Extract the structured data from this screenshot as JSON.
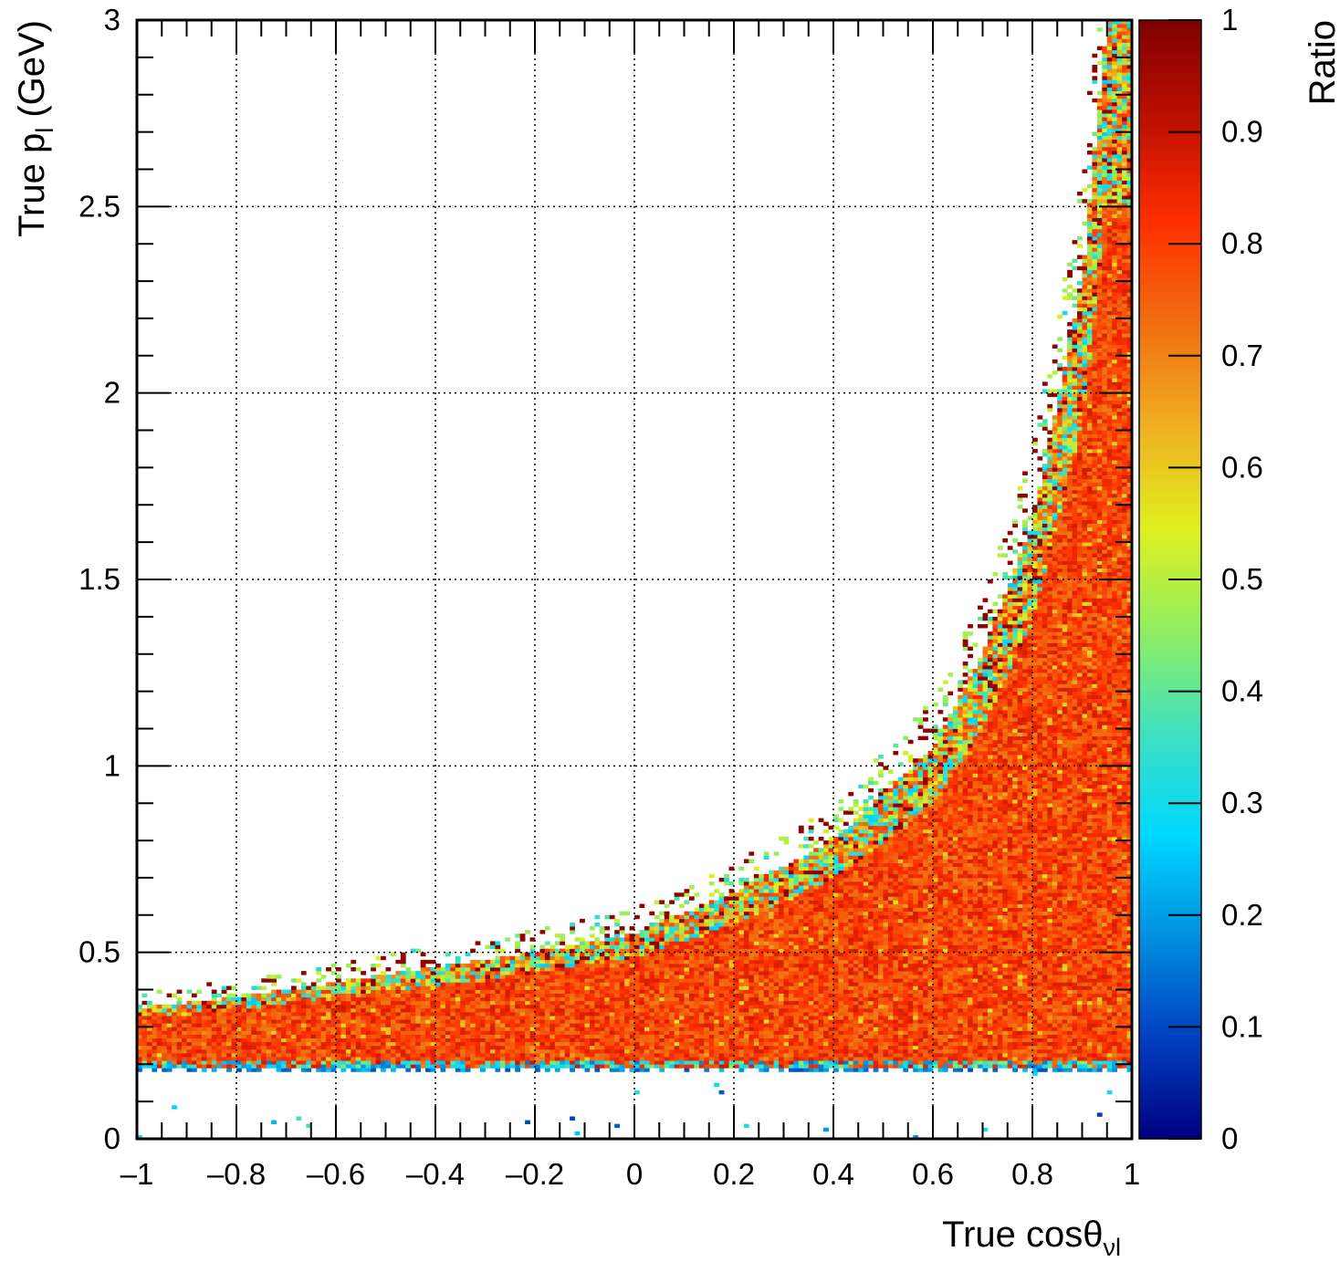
{
  "chart_data": {
    "type": "heatmap",
    "title": "",
    "xlabel": {
      "main": "True cos",
      "symbol": "θ",
      "subscript": "νl"
    },
    "ylabel": {
      "main": "True p",
      "subscript": "l",
      "unit": " (GeV)"
    },
    "zlabel": "Ratio",
    "xlim": [
      -1,
      1
    ],
    "ylim": [
      0,
      3
    ],
    "zlim": [
      0,
      1
    ],
    "x_ticks": [
      -1,
      -0.8,
      -0.6,
      -0.4,
      -0.2,
      0,
      0.2,
      0.4,
      0.6,
      0.8,
      1
    ],
    "x_tick_labels": [
      "–1",
      "–0.8",
      "–0.6",
      "–0.4",
      "–0.2",
      "0",
      "0.2",
      "0.4",
      "0.6",
      "0.8",
      "1"
    ],
    "y_ticks": [
      0,
      0.5,
      1,
      1.5,
      2,
      2.5,
      3
    ],
    "y_tick_labels": [
      "0",
      "0.5",
      "1",
      "1.5",
      "2",
      "2.5",
      "3"
    ],
    "z_ticks": [
      0,
      0.1,
      0.2,
      0.3,
      0.4,
      0.5,
      0.6,
      0.7,
      0.8,
      0.9,
      1
    ],
    "z_tick_labels": [
      "0",
      "0.1",
      "0.2",
      "0.3",
      "0.4",
      "0.5",
      "0.6",
      "0.7",
      "0.8",
      "0.9",
      "1"
    ],
    "grid": true,
    "colormap": [
      "#00007f",
      "#0040c0",
      "#0090e0",
      "#00d8ff",
      "#40e0c0",
      "#90ee60",
      "#e0f020",
      "#f0b020",
      "#f07010",
      "#ff3000",
      "#c01000",
      "#7f0000"
    ],
    "bins": {
      "x_count": 200,
      "y_count": 300
    },
    "threshold_p": 0.2,
    "edge_description": [
      {
        "cos": -1.0,
        "p_edge": 0.35
      },
      {
        "cos": -0.8,
        "p_edge": 0.38
      },
      {
        "cos": -0.6,
        "p_edge": 0.42
      },
      {
        "cos": -0.4,
        "p_edge": 0.46
      },
      {
        "cos": -0.2,
        "p_edge": 0.5
      },
      {
        "cos": 0.0,
        "p_edge": 0.55
      },
      {
        "cos": 0.2,
        "p_edge": 0.66
      },
      {
        "cos": 0.4,
        "p_edge": 0.8
      },
      {
        "cos": 0.6,
        "p_edge": 1.05
      },
      {
        "cos": 0.7,
        "p_edge": 1.3
      },
      {
        "cos": 0.8,
        "p_edge": 1.65
      },
      {
        "cos": 0.9,
        "p_edge": 2.3
      },
      {
        "cos": 0.95,
        "p_edge": 3.0
      },
      {
        "cos": 1.0,
        "p_edge": 3.0
      }
    ],
    "bulk_ratio": 0.8
  }
}
